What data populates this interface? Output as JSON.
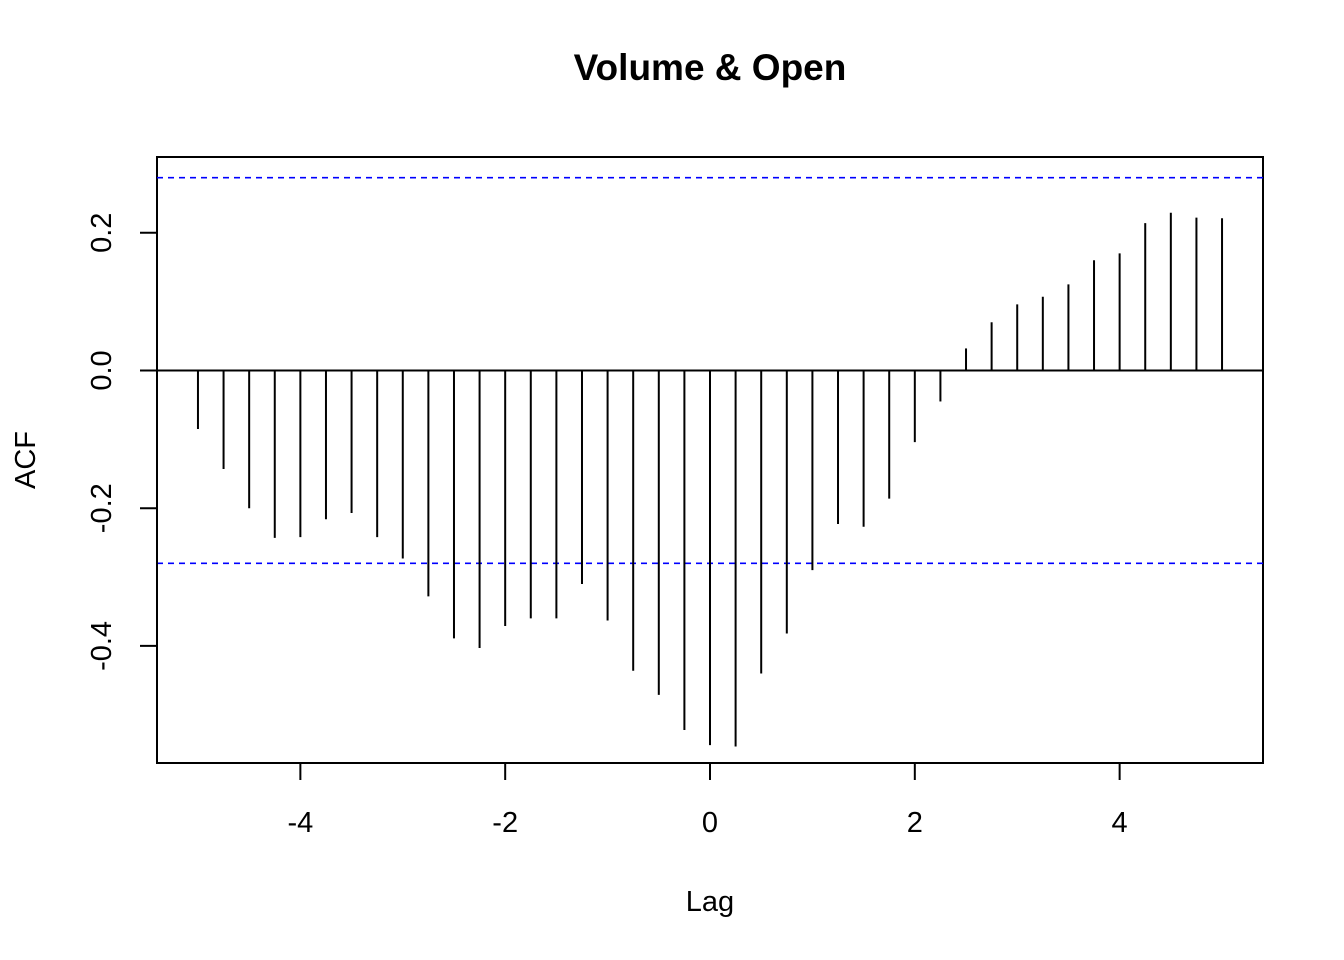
{
  "chart_data": {
    "type": "bar",
    "title": "Volume & Open",
    "xlabel": "Lag",
    "ylabel": "ACF",
    "xlim": [
      -5.4,
      5.4
    ],
    "ylim": [
      -0.57,
      0.31
    ],
    "x_ticks": [
      -4,
      -2,
      0,
      2,
      4
    ],
    "x_tick_labels": [
      "-4",
      "-2",
      "0",
      "2",
      "4"
    ],
    "y_ticks": [
      -0.4,
      -0.2,
      0.0,
      0.2
    ],
    "y_tick_labels": [
      "-0.4",
      "-0.2",
      "0.0",
      "0.2"
    ],
    "confidence_bounds": [
      0.28,
      -0.28
    ],
    "bound_color": "#0000ff",
    "bar_color": "#000000",
    "lags": [
      -5.0,
      -4.75,
      -4.5,
      -4.25,
      -4.0,
      -3.75,
      -3.5,
      -3.25,
      -3.0,
      -2.75,
      -2.5,
      -2.25,
      -2.0,
      -1.75,
      -1.5,
      -1.25,
      -1.0,
      -0.75,
      -0.5,
      -0.25,
      0.0,
      0.25,
      0.5,
      0.75,
      1.0,
      1.25,
      1.5,
      1.75,
      2.0,
      2.25,
      2.5,
      2.75,
      3.0,
      3.25,
      3.5,
      3.75,
      4.0,
      4.25,
      4.5,
      4.75,
      5.0
    ],
    "acf": [
      -0.085,
      -0.143,
      -0.2,
      -0.243,
      -0.242,
      -0.216,
      -0.207,
      -0.242,
      -0.273,
      -0.328,
      -0.389,
      -0.403,
      -0.371,
      -0.36,
      -0.36,
      -0.31,
      -0.363,
      -0.436,
      -0.471,
      -0.522,
      -0.544,
      -0.546,
      -0.44,
      -0.382,
      -0.29,
      -0.223,
      -0.227,
      -0.186,
      -0.104,
      -0.045,
      0.032,
      0.07,
      0.096,
      0.107,
      0.125,
      0.16,
      0.17,
      0.214,
      0.229,
      0.222,
      0.221
    ]
  }
}
